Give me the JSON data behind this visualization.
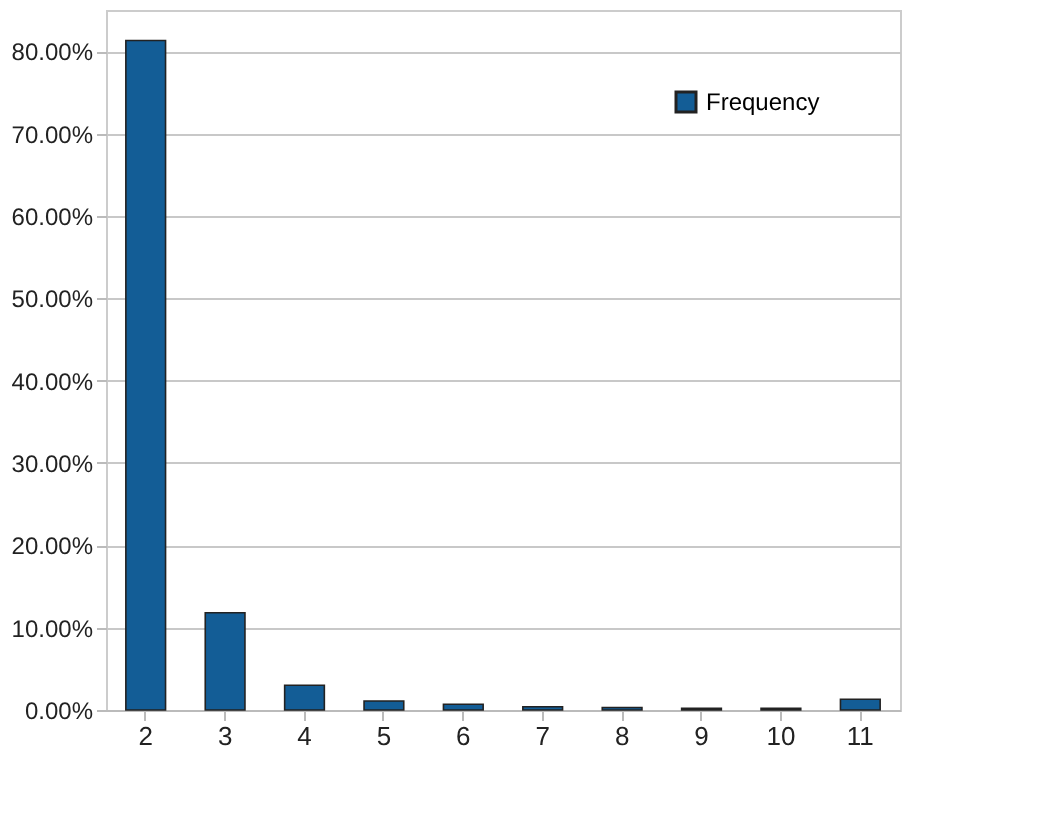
{
  "chart_data": {
    "type": "bar",
    "categories": [
      "2",
      "3",
      "4",
      "5",
      "6",
      "7",
      "8",
      "9",
      "10",
      "11"
    ],
    "series": [
      {
        "name": "Frequency",
        "color": "#135d96",
        "values": [
          81.3,
          11.8,
          3.0,
          1.1,
          0.7,
          0.4,
          0.3,
          0.2,
          0.2,
          1.3
        ]
      }
    ],
    "ylim": [
      0,
      85
    ],
    "yticks": [
      {
        "value": 0,
        "label": "0.00%"
      },
      {
        "value": 10,
        "label": "10.00%"
      },
      {
        "value": 20,
        "label": "20.00%"
      },
      {
        "value": 30,
        "label": "30.00%"
      },
      {
        "value": 40,
        "label": "40.00%"
      },
      {
        "value": 50,
        "label": "50.00%"
      },
      {
        "value": 60,
        "label": "60.00%"
      },
      {
        "value": 70,
        "label": "70.00%"
      },
      {
        "value": 80,
        "label": "80.00%"
      }
    ],
    "grid": "y",
    "legend": "top right"
  }
}
